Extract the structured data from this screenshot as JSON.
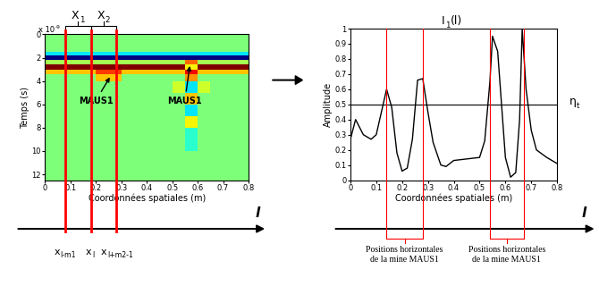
{
  "chart_data": [
    {
      "type": "heatmap",
      "x_label": "Coordonnées spatiales (m)",
      "y_label": "Temps (s)",
      "y_scale_label": {
        "base": "x 10",
        "sup": "-9"
      },
      "xlim": [
        0,
        0.8
      ],
      "ylim": [
        12.5,
        0
      ],
      "xticks": [
        0,
        0.1,
        0.2,
        0.3,
        0.4,
        0.5,
        0.6,
        0.7,
        0.8
      ],
      "yticks": [
        0,
        2,
        4,
        6,
        8,
        10,
        12
      ],
      "x_edges": [
        0,
        0.05,
        0.1,
        0.15,
        0.2,
        0.25,
        0.3,
        0.35,
        0.4,
        0.45,
        0.5,
        0.55,
        0.6,
        0.65,
        0.7,
        0.75,
        0.8
      ],
      "y_edges": [
        0,
        1.5,
        1.8,
        2.2,
        2.6,
        3.0,
        3.4,
        4,
        5,
        6,
        7,
        8,
        10,
        12.5
      ],
      "cells": [
        [
          0,
          0,
          0,
          0,
          0,
          0,
          0,
          0,
          0,
          0,
          0,
          0,
          0,
          0,
          0,
          0
        ],
        [
          -0.3,
          -0.3,
          -0.3,
          -0.3,
          -0.3,
          -0.3,
          -0.3,
          -0.3,
          -0.3,
          -0.3,
          -0.3,
          -0.3,
          -0.3,
          -0.3,
          -0.3,
          -0.3
        ],
        [
          -1,
          -1,
          -1,
          -1,
          -1,
          -1,
          -1,
          -1,
          -1,
          -1,
          -1,
          -1,
          -1,
          -1,
          -1,
          -1
        ],
        [
          0.1,
          0.1,
          0.1,
          0.1,
          0.1,
          0.1,
          0.1,
          0.1,
          0.1,
          0.1,
          0.1,
          0.6,
          0.1,
          0.1,
          0.1,
          0.1
        ],
        [
          1,
          1,
          1,
          1,
          1,
          1,
          1,
          1,
          1,
          1,
          1,
          0.3,
          1,
          1,
          1,
          1
        ],
        [
          0.4,
          0.4,
          0.4,
          0.4,
          0.7,
          0.7,
          0.4,
          0.4,
          0.4,
          0.4,
          0.4,
          0.8,
          0.4,
          0.4,
          0.4,
          0.4
        ],
        [
          0,
          0,
          0,
          0,
          0.4,
          0.4,
          0,
          0,
          0,
          0,
          0,
          0.5,
          0,
          0,
          0,
          0
        ],
        [
          0,
          0,
          0,
          0,
          0,
          0,
          0,
          0,
          0,
          0,
          0.2,
          -0.3,
          0.2,
          0,
          0,
          0
        ],
        [
          0,
          0,
          0,
          0,
          0,
          0,
          0,
          0,
          0,
          0,
          0,
          0.4,
          0,
          0,
          0,
          0
        ],
        [
          0,
          0,
          0,
          0,
          0,
          0,
          0,
          0,
          0,
          0,
          0,
          -0.3,
          0,
          0,
          0,
          0
        ],
        [
          0,
          0,
          0,
          0,
          0,
          0,
          0,
          0,
          0,
          0,
          0,
          0.3,
          0,
          0,
          0,
          0
        ],
        [
          0,
          0,
          0,
          0,
          0,
          0,
          0,
          0,
          0,
          0,
          0,
          -0.2,
          0,
          0,
          0,
          0
        ],
        [
          0,
          0,
          0,
          0,
          0,
          0,
          0,
          0,
          0,
          0,
          0,
          0,
          0,
          0,
          0,
          0
        ]
      ],
      "color_range": [
        -1,
        1
      ],
      "annotations": [
        {
          "text": "MAUS1",
          "x": 0.26,
          "y": 3.5,
          "text_x": 0.2,
          "text_y": 5.3
        },
        {
          "text": "MAUS1",
          "x": 0.57,
          "y": 2.5,
          "text_x": 0.55,
          "text_y": 5.3
        }
      ],
      "window_lines": [
        0.08,
        0.18,
        0.28
      ],
      "window_labels": [
        {
          "base": "X",
          "sub": "1"
        },
        {
          "base": "X",
          "sub": "2"
        }
      ],
      "line_labels": [
        {
          "base": "x",
          "sub": "l-m1"
        },
        {
          "base": "x",
          "sub": "l"
        },
        {
          "base": "x",
          "sub": "l+m2-1"
        }
      ],
      "axis_name": "l"
    },
    {
      "type": "line",
      "title": {
        "base": "I",
        "sub": "1",
        "suffix": "(l)"
      },
      "x_label": "Coordonnées spatiales (m)",
      "y_label": "Amplitude",
      "color": "#000000",
      "x": [
        0,
        0.02,
        0.05,
        0.08,
        0.1,
        0.14,
        0.16,
        0.18,
        0.2,
        0.22,
        0.24,
        0.26,
        0.28,
        0.3,
        0.32,
        0.35,
        0.37,
        0.4,
        0.5,
        0.52,
        0.54,
        0.55,
        0.57,
        0.6,
        0.62,
        0.64,
        0.655,
        0.665,
        0.68,
        0.7,
        0.72,
        0.76,
        0.8
      ],
      "values": [
        0.27,
        0.4,
        0.3,
        0.27,
        0.3,
        0.6,
        0.48,
        0.18,
        0.06,
        0.08,
        0.27,
        0.66,
        0.67,
        0.45,
        0.25,
        0.1,
        0.09,
        0.13,
        0.15,
        0.26,
        0.65,
        0.95,
        0.85,
        0.15,
        0.02,
        0.05,
        0.4,
        1.0,
        0.6,
        0.33,
        0.2,
        0.15,
        0.11
      ],
      "xlim": [
        0,
        0.8
      ],
      "ylim": [
        0,
        1
      ],
      "xticks": [
        0,
        0.1,
        0.2,
        0.3,
        0.4,
        0.5,
        0.6,
        0.7,
        0.8
      ],
      "yticks": [
        0,
        0.1,
        0.2,
        0.3,
        0.4,
        0.5,
        0.6,
        0.7,
        0.8,
        0.9,
        1
      ],
      "threshold": {
        "value": 0.5,
        "label": {
          "base": "η",
          "sub": "t"
        }
      },
      "regions": [
        {
          "range": [
            0.14,
            0.28
          ],
          "label": "Positions horizontales\nde la mine MAUS1"
        },
        {
          "range": [
            0.54,
            0.67
          ],
          "label": "Positions horizontales\nde la mine MAUS1"
        }
      ],
      "axis_name": "l"
    }
  ]
}
